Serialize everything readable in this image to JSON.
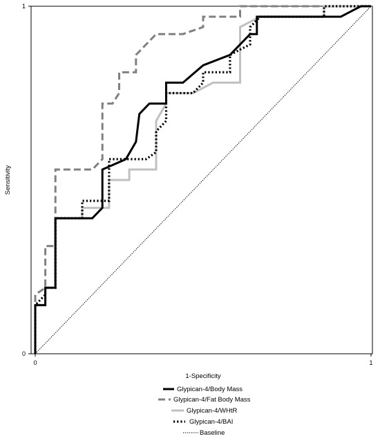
{
  "chart_data": {
    "type": "line",
    "xlabel": "1-Specificity",
    "ylabel": "Sensitivity",
    "xlim": [
      0,
      1
    ],
    "ylim": [
      0,
      1
    ],
    "x_ticks": [
      "0",
      "1"
    ],
    "y_ticks": [
      "0",
      "1"
    ],
    "grid": false,
    "legend_position": "bottom",
    "series": [
      {
        "name": "Glypican-4/Body Mass",
        "color": "#000000",
        "style": "solid-thick",
        "points": [
          [
            0,
            0
          ],
          [
            0,
            0.14
          ],
          [
            0.03,
            0.14
          ],
          [
            0.03,
            0.19
          ],
          [
            0.06,
            0.19
          ],
          [
            0.06,
            0.39
          ],
          [
            0.17,
            0.39
          ],
          [
            0.2,
            0.42
          ],
          [
            0.2,
            0.53
          ],
          [
            0.27,
            0.56
          ],
          [
            0.3,
            0.61
          ],
          [
            0.31,
            0.69
          ],
          [
            0.34,
            0.72
          ],
          [
            0.39,
            0.72
          ],
          [
            0.39,
            0.78
          ],
          [
            0.44,
            0.78
          ],
          [
            0.5,
            0.83
          ],
          [
            0.58,
            0.86
          ],
          [
            0.64,
            0.92
          ],
          [
            0.66,
            0.92
          ],
          [
            0.66,
            0.97
          ],
          [
            0.91,
            0.97
          ],
          [
            0.97,
            1
          ],
          [
            1,
            1
          ]
        ]
      },
      {
        "name": "Glypican-4/Fat Body Mass",
        "color": "#808080",
        "style": "dashed",
        "points": [
          [
            0,
            0
          ],
          [
            0,
            0.17
          ],
          [
            0.03,
            0.19
          ],
          [
            0.03,
            0.31
          ],
          [
            0.06,
            0.31
          ],
          [
            0.06,
            0.53
          ],
          [
            0.17,
            0.53
          ],
          [
            0.2,
            0.56
          ],
          [
            0.2,
            0.72
          ],
          [
            0.23,
            0.72
          ],
          [
            0.25,
            0.75
          ],
          [
            0.25,
            0.81
          ],
          [
            0.3,
            0.81
          ],
          [
            0.3,
            0.86
          ],
          [
            0.36,
            0.92
          ],
          [
            0.44,
            0.92
          ],
          [
            0.5,
            0.94
          ],
          [
            0.5,
            0.97
          ],
          [
            0.61,
            0.97
          ],
          [
            0.61,
            1
          ],
          [
            1,
            1
          ]
        ]
      },
      {
        "name": "Glypican-4/WHtR",
        "color": "#c0c0c0",
        "style": "solid",
        "points": [
          [
            0,
            0
          ],
          [
            0,
            0.14
          ],
          [
            0.03,
            0.14
          ],
          [
            0.03,
            0.19
          ],
          [
            0.06,
            0.19
          ],
          [
            0.06,
            0.39
          ],
          [
            0.14,
            0.39
          ],
          [
            0.14,
            0.42
          ],
          [
            0.22,
            0.42
          ],
          [
            0.22,
            0.5
          ],
          [
            0.28,
            0.5
          ],
          [
            0.28,
            0.53
          ],
          [
            0.36,
            0.53
          ],
          [
            0.36,
            0.67
          ],
          [
            0.39,
            0.72
          ],
          [
            0.39,
            0.75
          ],
          [
            0.47,
            0.75
          ],
          [
            0.53,
            0.78
          ],
          [
            0.61,
            0.78
          ],
          [
            0.61,
            0.94
          ],
          [
            0.67,
            0.97
          ],
          [
            0.86,
            0.97
          ],
          [
            0.86,
            1
          ],
          [
            1,
            1
          ]
        ]
      },
      {
        "name": "Glypican-4/BAI",
        "color": "#000000",
        "style": "dotted",
        "points": [
          [
            0,
            0
          ],
          [
            0,
            0.14
          ],
          [
            0.03,
            0.17
          ],
          [
            0.03,
            0.19
          ],
          [
            0.06,
            0.19
          ],
          [
            0.06,
            0.39
          ],
          [
            0.14,
            0.39
          ],
          [
            0.14,
            0.44
          ],
          [
            0.22,
            0.44
          ],
          [
            0.22,
            0.56
          ],
          [
            0.33,
            0.56
          ],
          [
            0.36,
            0.58
          ],
          [
            0.36,
            0.64
          ],
          [
            0.39,
            0.67
          ],
          [
            0.39,
            0.75
          ],
          [
            0.47,
            0.75
          ],
          [
            0.5,
            0.78
          ],
          [
            0.5,
            0.81
          ],
          [
            0.58,
            0.81
          ],
          [
            0.58,
            0.86
          ],
          [
            0.64,
            0.89
          ],
          [
            0.64,
            0.94
          ],
          [
            0.67,
            0.97
          ],
          [
            0.86,
            0.97
          ],
          [
            0.86,
            1
          ],
          [
            1,
            1
          ]
        ]
      },
      {
        "name": "Baseline",
        "color": "#000000",
        "style": "dotted-thin",
        "points": [
          [
            0,
            0
          ],
          [
            1,
            1
          ]
        ]
      }
    ]
  }
}
